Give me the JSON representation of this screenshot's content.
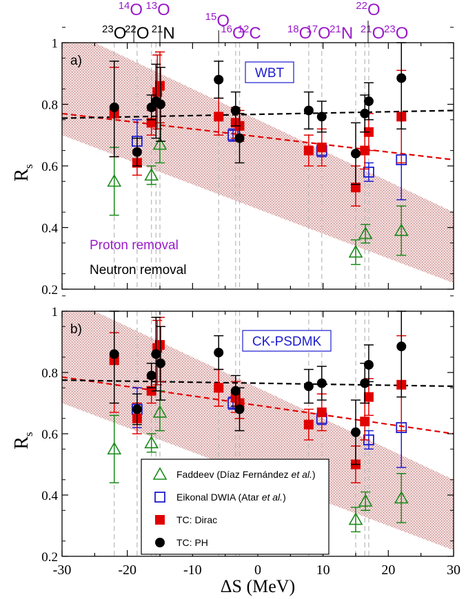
{
  "chart_data": [
    {
      "type": "scatter",
      "panel_label": "a)",
      "model_label": "WBT",
      "ylabel_main": "R",
      "ylabel_sub": "s",
      "ylim": [
        0.2,
        1.0
      ],
      "xlim": [
        -30,
        30
      ],
      "y_ticks": [
        "0.2",
        "0.4",
        "0.6",
        "0.8",
        "1"
      ],
      "grid": false,
      "annotations": {
        "proton": "Proton removal",
        "neutron": "Neutron removal"
      },
      "band": {
        "upper": [
          [
            -30,
            1.04
          ],
          [
            -25,
            1.0
          ],
          [
            30,
            0.45
          ]
        ],
        "lower": [
          [
            -30,
            0.7
          ],
          [
            30,
            0.22
          ]
        ]
      },
      "fits": [
        {
          "series": "TC: Dirac",
          "color": "#e00000",
          "x": [
            -30,
            30
          ],
          "y": [
            0.77,
            0.62
          ]
        },
        {
          "series": "TC: PH",
          "color": "#000000",
          "x": [
            -30,
            30
          ],
          "y": [
            0.755,
            0.78
          ]
        }
      ],
      "series": [
        {
          "name": "Faddeev (Díaz Fernández et al.)",
          "color": "#1a8a1a",
          "marker": "triangle",
          "points": [
            {
              "x": -22.0,
              "y": 0.55,
              "lo": 0.44,
              "hi": 0.66
            },
            {
              "x": -16.3,
              "y": 0.57,
              "lo": 0.54,
              "hi": 0.6
            },
            {
              "x": -15.0,
              "y": 0.67,
              "lo": 0.61,
              "hi": 0.74
            },
            {
              "x": 15.0,
              "y": 0.32,
              "lo": 0.28,
              "hi": 0.36
            },
            {
              "x": 16.5,
              "y": 0.38,
              "lo": 0.35,
              "hi": 0.41
            },
            {
              "x": 22.0,
              "y": 0.39,
              "lo": 0.31,
              "hi": 0.47
            }
          ]
        },
        {
          "name": "Eikonal DWIA (Atar et al.)",
          "color": "#1c1cd0",
          "marker": "square",
          "points": [
            {
              "x": -18.5,
              "y": 0.68,
              "lo": 0.62,
              "hi": 0.75
            },
            {
              "x": -3.8,
              "y": 0.7,
              "lo": 0.68,
              "hi": 0.72
            },
            {
              "x": 9.8,
              "y": 0.65,
              "lo": 0.63,
              "hi": 0.67
            },
            {
              "x": 17.0,
              "y": 0.58,
              "lo": 0.55,
              "hi": 0.61
            },
            {
              "x": 22.0,
              "y": 0.62,
              "lo": 0.49,
              "hi": 0.75
            }
          ]
        },
        {
          "name": "TC: Dirac",
          "color": "#e00000",
          "marker": "filled-square",
          "points": [
            {
              "x": -22.0,
              "y": 0.77,
              "lo": 0.63,
              "hi": 0.92
            },
            {
              "x": -18.5,
              "y": 0.61,
              "lo": 0.57,
              "hi": 0.65
            },
            {
              "x": -16.3,
              "y": 0.74,
              "lo": 0.7,
              "hi": 0.78
            },
            {
              "x": -15.4,
              "y": 0.84,
              "lo": 0.72,
              "hi": 0.96
            },
            {
              "x": -15.0,
              "y": 0.86,
              "lo": 0.74,
              "hi": 0.97
            },
            {
              "x": -6.0,
              "y": 0.76,
              "lo": 0.7,
              "hi": 0.82
            },
            {
              "x": -3.4,
              "y": 0.74,
              "lo": 0.69,
              "hi": 0.79
            },
            {
              "x": -2.8,
              "y": 0.73,
              "lo": 0.68,
              "hi": 0.78
            },
            {
              "x": 7.8,
              "y": 0.65,
              "lo": 0.6,
              "hi": 0.7
            },
            {
              "x": 9.8,
              "y": 0.66,
              "lo": 0.6,
              "hi": 0.72
            },
            {
              "x": 15.0,
              "y": 0.53,
              "lo": 0.47,
              "hi": 0.6
            },
            {
              "x": 16.4,
              "y": 0.65,
              "lo": 0.59,
              "hi": 0.71
            },
            {
              "x": 17.0,
              "y": 0.71,
              "lo": 0.65,
              "hi": 0.77
            },
            {
              "x": 22.0,
              "y": 0.76,
              "lo": 0.61,
              "hi": 0.91
            }
          ]
        },
        {
          "name": "TC: PH",
          "color": "#000000",
          "marker": "circle",
          "points": [
            {
              "x": -22.0,
              "y": 0.79,
              "lo": 0.63,
              "hi": 0.94
            },
            {
              "x": -18.5,
              "y": 0.645,
              "lo": 0.6,
              "hi": 0.69
            },
            {
              "x": -16.3,
              "y": 0.79,
              "lo": 0.75,
              "hi": 0.83
            },
            {
              "x": -15.6,
              "y": 0.81,
              "lo": 0.69,
              "hi": 0.93
            },
            {
              "x": -14.9,
              "y": 0.8,
              "lo": 0.68,
              "hi": 0.92
            },
            {
              "x": -6.0,
              "y": 0.88,
              "lo": 0.82,
              "hi": 0.94
            },
            {
              "x": -3.4,
              "y": 0.78,
              "lo": 0.73,
              "hi": 0.84
            },
            {
              "x": -2.8,
              "y": 0.69,
              "lo": 0.61,
              "hi": 0.77
            },
            {
              "x": 7.8,
              "y": 0.78,
              "lo": 0.72,
              "hi": 0.84
            },
            {
              "x": 9.8,
              "y": 0.76,
              "lo": 0.71,
              "hi": 0.81
            },
            {
              "x": 15.0,
              "y": 0.64,
              "lo": 0.54,
              "hi": 0.74
            },
            {
              "x": 16.4,
              "y": 0.77,
              "lo": 0.71,
              "hi": 0.83
            },
            {
              "x": 17.0,
              "y": 0.81,
              "lo": 0.75,
              "hi": 0.87
            },
            {
              "x": 22.0,
              "y": 0.885,
              "lo": 0.72,
              "hi": 1.0
            }
          ]
        }
      ]
    },
    {
      "type": "scatter",
      "panel_label": "b)",
      "model_label": "CK-PSDMK",
      "ylabel_main": "R",
      "ylabel_sub": "s",
      "xlabel": "ΔS (MeV)",
      "ylim": [
        0.2,
        1.0
      ],
      "xlim": [
        -30,
        30
      ],
      "x_ticks": [
        "-30",
        "-20",
        "-10",
        "0",
        "10",
        "20",
        "30"
      ],
      "y_ticks": [
        "0.2",
        "0.4",
        "0.6",
        "0.8",
        "1"
      ],
      "grid": false,
      "legend_position": "bottom-left",
      "band": {
        "upper": [
          [
            -30,
            1.04
          ],
          [
            -25,
            1.0
          ],
          [
            30,
            0.45
          ]
        ],
        "lower": [
          [
            -30,
            0.7
          ],
          [
            30,
            0.22
          ]
        ]
      },
      "fits": [
        {
          "series": "TC: Dirac",
          "color": "#e00000",
          "x": [
            -30,
            30
          ],
          "y": [
            0.785,
            0.6
          ]
        },
        {
          "series": "TC: PH",
          "color": "#000000",
          "x": [
            -30,
            30
          ],
          "y": [
            0.775,
            0.755
          ]
        }
      ],
      "series": [
        {
          "name": "Faddeev (Díaz Fernández et al.)",
          "color": "#1a8a1a",
          "marker": "triangle",
          "points": [
            {
              "x": -22.0,
              "y": 0.55,
              "lo": 0.44,
              "hi": 0.66
            },
            {
              "x": -16.3,
              "y": 0.57,
              "lo": 0.54,
              "hi": 0.6
            },
            {
              "x": -15.0,
              "y": 0.67,
              "lo": 0.61,
              "hi": 0.74
            },
            {
              "x": 15.0,
              "y": 0.32,
              "lo": 0.28,
              "hi": 0.36
            },
            {
              "x": 16.5,
              "y": 0.38,
              "lo": 0.35,
              "hi": 0.41
            },
            {
              "x": 22.0,
              "y": 0.39,
              "lo": 0.31,
              "hi": 0.47
            }
          ]
        },
        {
          "name": "Eikonal DWIA (Atar et al.)",
          "color": "#1c1cd0",
          "marker": "square",
          "points": [
            {
              "x": -18.5,
              "y": 0.68,
              "lo": 0.62,
              "hi": 0.75
            },
            {
              "x": -3.8,
              "y": 0.7,
              "lo": 0.68,
              "hi": 0.72
            },
            {
              "x": 9.8,
              "y": 0.65,
              "lo": 0.63,
              "hi": 0.67
            },
            {
              "x": 17.0,
              "y": 0.58,
              "lo": 0.55,
              "hi": 0.61
            },
            {
              "x": 22.0,
              "y": 0.62,
              "lo": 0.49,
              "hi": 0.75
            }
          ]
        },
        {
          "name": "TC: Dirac",
          "color": "#e00000",
          "marker": "filled-square",
          "points": [
            {
              "x": -22.0,
              "y": 0.84,
              "lo": 0.67,
              "hi": 0.93
            },
            {
              "x": -18.5,
              "y": 0.65,
              "lo": 0.6,
              "hi": 0.7
            },
            {
              "x": -16.3,
              "y": 0.74,
              "lo": 0.7,
              "hi": 0.78
            },
            {
              "x": -15.4,
              "y": 0.88,
              "lo": 0.76,
              "hi": 0.97
            },
            {
              "x": -15.0,
              "y": 0.89,
              "lo": 0.77,
              "hi": 0.98
            },
            {
              "x": -6.0,
              "y": 0.75,
              "lo": 0.69,
              "hi": 0.81
            },
            {
              "x": -3.4,
              "y": 0.72,
              "lo": 0.67,
              "hi": 0.77
            },
            {
              "x": -2.8,
              "y": 0.7,
              "lo": 0.65,
              "hi": 0.75
            },
            {
              "x": 7.8,
              "y": 0.63,
              "lo": 0.58,
              "hi": 0.68
            },
            {
              "x": 9.8,
              "y": 0.67,
              "lo": 0.61,
              "hi": 0.73
            },
            {
              "x": 15.0,
              "y": 0.5,
              "lo": 0.44,
              "hi": 0.56
            },
            {
              "x": 16.4,
              "y": 0.64,
              "lo": 0.58,
              "hi": 0.7
            },
            {
              "x": 17.0,
              "y": 0.72,
              "lo": 0.66,
              "hi": 0.78
            },
            {
              "x": 22.0,
              "y": 0.76,
              "lo": 0.61,
              "hi": 0.92
            }
          ]
        },
        {
          "name": "TC: PH",
          "color": "#000000",
          "marker": "circle",
          "points": [
            {
              "x": -22.0,
              "y": 0.86,
              "lo": 0.7,
              "hi": 1.0
            },
            {
              "x": -18.5,
              "y": 0.68,
              "lo": 0.63,
              "hi": 0.73
            },
            {
              "x": -16.3,
              "y": 0.79,
              "lo": 0.75,
              "hi": 0.83
            },
            {
              "x": -15.6,
              "y": 0.86,
              "lo": 0.74,
              "hi": 0.98
            },
            {
              "x": -14.9,
              "y": 0.83,
              "lo": 0.71,
              "hi": 0.95
            },
            {
              "x": -6.0,
              "y": 0.865,
              "lo": 0.81,
              "hi": 0.92
            },
            {
              "x": -3.4,
              "y": 0.74,
              "lo": 0.69,
              "hi": 0.79
            },
            {
              "x": -2.8,
              "y": 0.68,
              "lo": 0.61,
              "hi": 0.75
            },
            {
              "x": 7.8,
              "y": 0.755,
              "lo": 0.7,
              "hi": 0.81
            },
            {
              "x": 9.8,
              "y": 0.765,
              "lo": 0.71,
              "hi": 0.82
            },
            {
              "x": 15.0,
              "y": 0.605,
              "lo": 0.5,
              "hi": 0.71
            },
            {
              "x": 16.4,
              "y": 0.765,
              "lo": 0.7,
              "hi": 0.83
            },
            {
              "x": 17.0,
              "y": 0.825,
              "lo": 0.77,
              "hi": 0.89
            },
            {
              "x": 22.0,
              "y": 0.885,
              "lo": 0.72,
              "hi": 1.0
            }
          ]
        }
      ]
    }
  ],
  "legend": [
    {
      "prefix": "Faddeev (Díaz Fernández ",
      "italic": "et al.",
      "suffix": ")",
      "marker": "triangle",
      "color": "#1a8a1a"
    },
    {
      "prefix": "Eikonal DWIA (Atar ",
      "italic": "et al.",
      "suffix": ")",
      "marker": "square",
      "color": "#1c1cd0"
    },
    {
      "prefix": "TC: Dirac",
      "italic": "",
      "suffix": "",
      "marker": "filled-square",
      "color": "#e00000"
    },
    {
      "prefix": "TC: PH",
      "italic": "",
      "suffix": "",
      "marker": "circle",
      "color": "#000000"
    }
  ],
  "nuclei_vlines_x": [
    -22.0,
    -18.5,
    -16.3,
    -15.6,
    -15.0,
    -6.0,
    -3.4,
    -2.8,
    7.8,
    9.8,
    15.0,
    16.4,
    17.0
  ],
  "nuclei_labels": [
    {
      "mass": "23",
      "symbol": "O",
      "color": "#000000",
      "row": 2,
      "x": -22.0
    },
    {
      "mass": "22",
      "symbol": "O",
      "color": "#000000",
      "row": 2,
      "x": -18.5
    },
    {
      "mass": "21",
      "symbol": "N",
      "color": "#000000",
      "row": 2,
      "x": -14.5
    },
    {
      "mass": "14",
      "symbol": "O",
      "color": "#9a1ac8",
      "row": 1,
      "x": -19.5
    },
    {
      "mass": "13",
      "symbol": "O",
      "color": "#9a1ac8",
      "row": 1,
      "x": -15.3
    },
    {
      "mass": "15",
      "symbol": "O",
      "color": "#9a1ac8",
      "row": 1.5,
      "x": -6.2
    },
    {
      "mass": "16",
      "symbol": "O",
      "color": "#9a1ac8",
      "row": 2,
      "x": -3.8
    },
    {
      "mass": "12",
      "symbol": "C",
      "color": "#9a1ac8",
      "row": 2,
      "x": -1.3
    },
    {
      "mass": "18",
      "symbol": "O",
      "color": "#9a1ac8",
      "row": 2,
      "x": 6.4
    },
    {
      "mass": "17",
      "symbol": "O",
      "color": "#9a1ac8",
      "row": 2,
      "x": 9.3
    },
    {
      "mass": "21",
      "symbol": "N",
      "color": "#9a1ac8",
      "row": 2,
      "x": 12.8
    },
    {
      "mass": "22",
      "symbol": "O",
      "color": "#9a1ac8",
      "row": 1,
      "x": 16.9
    },
    {
      "mass": "21",
      "symbol": "O",
      "color": "#9a1ac8",
      "row": 2,
      "x": 17.6
    },
    {
      "mass": "23",
      "symbol": "O",
      "color": "#9a1ac8",
      "row": 2,
      "x": 21.2
    }
  ]
}
